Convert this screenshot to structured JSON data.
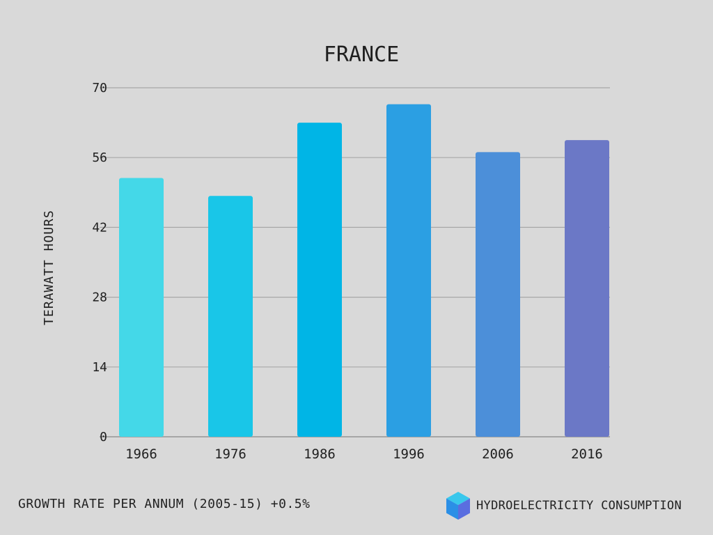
{
  "chart_data": {
    "type": "bar",
    "title": "FRANCE",
    "ylabel": "TERAWATT HOURS",
    "xlabel": "",
    "categories": [
      "1966",
      "1976",
      "1986",
      "1996",
      "2006",
      "2016"
    ],
    "values": [
      51.9,
      48.3,
      63.0,
      66.7,
      57.1,
      59.5
    ],
    "ylim": [
      0,
      70
    ],
    "yticks": [
      0,
      14,
      28,
      42,
      56,
      70
    ],
    "grid": true,
    "bar_colors": [
      "#44d8e8",
      "#19c6e8",
      "#00b5e6",
      "#2b9fe3",
      "#4c8fd9",
      "#6b78c6"
    ],
    "gridline_color": "#a8a8a8",
    "background": "#d9d9d9"
  },
  "footer": {
    "growth_text": "GROWTH RATE PER ANNUM (2005-15) +0.5%",
    "legend_label": "HYDROELECTRICITY CONSUMPTION",
    "legend_icon": "cube-icon",
    "legend_icon_colors": [
      "#39c7ec",
      "#2b8fe6",
      "#5a6ee0"
    ]
  }
}
